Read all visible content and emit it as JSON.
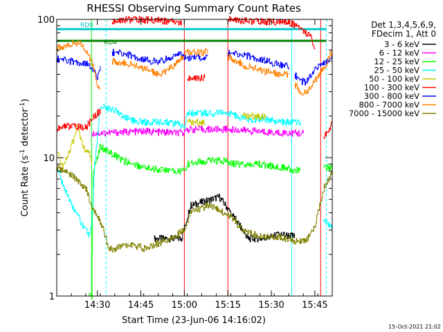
{
  "chart_data": {
    "type": "line",
    "title": "RHESSI Observing Summary Count Rates",
    "xlabel": "Start Time (23-Jun-06 14:16:02)",
    "ylabel": "Count Rate (s⁻¹ detector⁻¹)",
    "ylabel_main": "Count Rate (s",
    "ylabel_sup": "-1",
    "ylabel_tail": " detector",
    "ylabel_sup2": "-1",
    "ylabel_end": ")",
    "y_scale": "log",
    "ylim": [
      1,
      100
    ],
    "xlim_minutes": [
      0,
      95
    ],
    "x_ticks": [
      {
        "label": "14:30",
        "min": 14
      },
      {
        "label": "14:45",
        "min": 29
      },
      {
        "label": "15:00",
        "min": 44
      },
      {
        "label": "15:15",
        "min": 59
      },
      {
        "label": "15:30",
        "min": 74
      },
      {
        "label": "15:45",
        "min": 89
      }
    ],
    "y_ticks": [
      {
        "label": "1",
        "v": 1
      },
      {
        "label": "10",
        "v": 10
      },
      {
        "label": "100",
        "v": 100
      }
    ],
    "legend_header": [
      "Det 1,3,4,5,6,9,",
      "FDecim 1, Att 0"
    ],
    "legend_placement": "right",
    "series": [
      {
        "name": "3 - 6 keV",
        "color": "#000000",
        "pts": [
          [
            0,
            null
          ],
          [
            33,
            null
          ],
          [
            33.5,
            2.6
          ],
          [
            43,
            2.6
          ],
          [
            46,
            4.5
          ],
          [
            56,
            5.2
          ],
          [
            60,
            4.0
          ],
          [
            66,
            2.6
          ],
          [
            72,
            2.6
          ],
          [
            77,
            2.8
          ],
          [
            82,
            2.7
          ],
          [
            85,
            null
          ]
        ]
      },
      {
        "name": "6 - 12 keV",
        "color": "#ff00ff",
        "pts": [
          [
            12,
            15
          ],
          [
            30,
            15.5
          ],
          [
            44,
            15
          ],
          [
            45,
            16
          ],
          [
            58,
            16
          ],
          [
            60,
            16
          ],
          [
            75,
            15.2
          ],
          [
            85,
            15
          ],
          [
            86,
            null
          ]
        ]
      },
      {
        "name": "12 - 25 keV",
        "color": "#00ff00",
        "pts": [
          [
            0,
            null
          ],
          [
            10,
            null
          ],
          [
            11,
            1.0
          ],
          [
            12,
            1.0
          ],
          [
            12.5,
            8.0
          ],
          [
            15,
            12
          ],
          [
            18,
            11
          ],
          [
            23,
            9.5
          ],
          [
            30,
            8.5
          ],
          [
            40,
            8.0
          ],
          [
            44,
            8.0
          ],
          [
            45,
            9.0
          ],
          [
            52,
            9.5
          ],
          [
            58,
            9.5
          ],
          [
            62,
            9.0
          ],
          [
            70,
            9.0
          ],
          [
            77,
            8.5
          ],
          [
            84,
            8.0
          ],
          [
            85,
            null
          ],
          [
            91,
            null
          ],
          [
            92,
            8.5
          ],
          [
            95,
            8.5
          ]
        ]
      },
      {
        "name": "25 - 50 keV",
        "color": "#00ffff",
        "pts": [
          [
            0,
            8.5
          ],
          [
            4,
            5.0
          ],
          [
            8,
            3.5
          ],
          [
            11,
            2.8
          ],
          [
            12,
            3.2
          ],
          [
            13,
            9.0
          ],
          [
            15,
            24
          ],
          [
            20,
            22
          ],
          [
            25,
            19
          ],
          [
            30,
            18
          ],
          [
            38,
            18
          ],
          [
            44,
            17
          ],
          [
            45,
            21
          ],
          [
            56,
            21
          ],
          [
            60,
            21
          ],
          [
            65,
            19
          ],
          [
            72,
            19
          ],
          [
            77,
            18
          ],
          [
            84,
            18
          ],
          [
            88,
            null
          ],
          [
            91,
            null
          ],
          [
            92,
            3.5
          ],
          [
            95,
            3.2
          ]
        ]
      },
      {
        "name": "50 - 100 keV",
        "color": "#c8c800",
        "pts": [
          [
            0,
            11
          ],
          [
            2,
            8.5
          ],
          [
            5,
            12
          ],
          [
            7,
            17
          ],
          [
            9,
            12
          ],
          [
            11,
            11
          ],
          [
            12,
            9
          ],
          [
            14,
            null
          ],
          [
            44,
            null
          ],
          [
            45,
            18
          ],
          [
            51,
            18
          ],
          [
            52,
            null
          ],
          [
            63,
            null
          ],
          [
            64,
            20
          ],
          [
            72,
            20
          ],
          [
            75,
            null
          ]
        ]
      },
      {
        "name": "100 - 300 keV",
        "color": "#ff0000",
        "pts": [
          [
            0,
            16
          ],
          [
            3,
            17
          ],
          [
            10,
            16.5
          ],
          [
            13,
            20
          ],
          [
            15,
            22
          ],
          [
            17,
            null
          ],
          [
            19,
            95
          ],
          [
            24,
            100
          ],
          [
            30,
            99
          ],
          [
            36,
            98
          ],
          [
            40,
            96
          ],
          [
            43,
            95
          ],
          [
            44,
            null
          ],
          [
            45,
            37
          ],
          [
            51,
            38
          ],
          [
            52,
            null
          ],
          [
            58,
            null
          ],
          [
            59,
            100
          ],
          [
            66,
            97
          ],
          [
            72,
            96
          ],
          [
            80,
            95
          ],
          [
            83,
            90
          ],
          [
            86,
            80
          ],
          [
            88,
            72
          ],
          [
            89,
            58
          ],
          [
            90,
            null
          ],
          [
            91,
            null
          ],
          [
            92,
            14
          ],
          [
            94,
            16
          ],
          [
            95,
            18
          ]
        ]
      },
      {
        "name": "300 - 800 keV",
        "color": "#0000ff",
        "pts": [
          [
            0,
            52
          ],
          [
            4,
            50
          ],
          [
            10,
            48
          ],
          [
            12,
            44
          ],
          [
            14,
            38
          ],
          [
            15,
            45
          ],
          [
            17,
            null
          ],
          [
            19,
            58
          ],
          [
            24,
            56
          ],
          [
            30,
            51
          ],
          [
            35,
            49
          ],
          [
            40,
            54
          ],
          [
            43,
            57
          ],
          [
            44,
            53
          ],
          [
            51,
            53
          ],
          [
            52,
            53
          ],
          [
            58,
            null
          ],
          [
            59,
            57
          ],
          [
            65,
            55
          ],
          [
            72,
            50
          ],
          [
            78,
            46
          ],
          [
            80,
            46
          ],
          [
            81,
            null
          ],
          [
            82,
            40
          ],
          [
            84,
            36
          ],
          [
            86,
            35
          ],
          [
            88,
            40
          ],
          [
            90,
            46
          ],
          [
            92,
            48
          ],
          [
            95,
            54
          ]
        ]
      },
      {
        "name": "800 - 7000 keV",
        "color": "#ff8000",
        "pts": [
          [
            0,
            62
          ],
          [
            4,
            66
          ],
          [
            8,
            67
          ],
          [
            10,
            58
          ],
          [
            12,
            50
          ],
          [
            13,
            42
          ],
          [
            14,
            34
          ],
          [
            15,
            30
          ],
          [
            17,
            null
          ],
          [
            19,
            50
          ],
          [
            24,
            48
          ],
          [
            30,
            44
          ],
          [
            36,
            40
          ],
          [
            40,
            46
          ],
          [
            43,
            52
          ],
          [
            44,
            58
          ],
          [
            51,
            58
          ],
          [
            52,
            58
          ],
          [
            58,
            null
          ],
          [
            59,
            54
          ],
          [
            65,
            46
          ],
          [
            72,
            42
          ],
          [
            78,
            40
          ],
          [
            80,
            40
          ],
          [
            81,
            null
          ],
          [
            82,
            34
          ],
          [
            84,
            30
          ],
          [
            86,
            29
          ],
          [
            88,
            33
          ],
          [
            90,
            39
          ],
          [
            92,
            44
          ],
          [
            95,
            60
          ]
        ]
      },
      {
        "name": "7000 - 15000 keV",
        "color": "#808000",
        "pts": [
          [
            0,
            8.5
          ],
          [
            5,
            7.5
          ],
          [
            10,
            6.0
          ],
          [
            12,
            4.5
          ],
          [
            14,
            3.8
          ],
          [
            16,
            3.0
          ],
          [
            18,
            2.2
          ],
          [
            20,
            2.2
          ],
          [
            25,
            2.4
          ],
          [
            30,
            2.2
          ],
          [
            35,
            2.4
          ],
          [
            40,
            2.7
          ],
          [
            44,
            3.0
          ],
          [
            46,
            4.0
          ],
          [
            52,
            4.5
          ],
          [
            56,
            4.2
          ],
          [
            60,
            3.8
          ],
          [
            64,
            3.0
          ],
          [
            70,
            2.7
          ],
          [
            76,
            2.7
          ],
          [
            82,
            2.5
          ],
          [
            86,
            2.5
          ],
          [
            89,
            3.2
          ],
          [
            92,
            6.0
          ],
          [
            95,
            7.8
          ]
        ]
      }
    ],
    "vertical_lines": [
      {
        "min": 17,
        "color": "#00ffff",
        "style": "dashed"
      },
      {
        "min": 81,
        "color": "#00ffff",
        "style": "solid"
      },
      {
        "min": 93,
        "color": "#00ffff",
        "style": "dashed"
      },
      {
        "min": 44,
        "color": "#ff0000",
        "style": "solid"
      },
      {
        "min": 59,
        "color": "#ff0000",
        "style": "solid"
      },
      {
        "min": 91,
        "color": "#ff0000",
        "style": "solid"
      },
      {
        "min": 12,
        "color": "#00ff00",
        "style": "solid"
      }
    ],
    "status_bars": [
      {
        "label": "RD0",
        "color": "#00c8c8",
        "min_start": 0,
        "min_end": 93,
        "value": 85
      },
      {
        "label": "RD4",
        "color": "#008000",
        "min_start": 0,
        "min_end": 93,
        "value": 70
      }
    ],
    "footer_timestamp": "15-Oct-2021 21:02"
  }
}
